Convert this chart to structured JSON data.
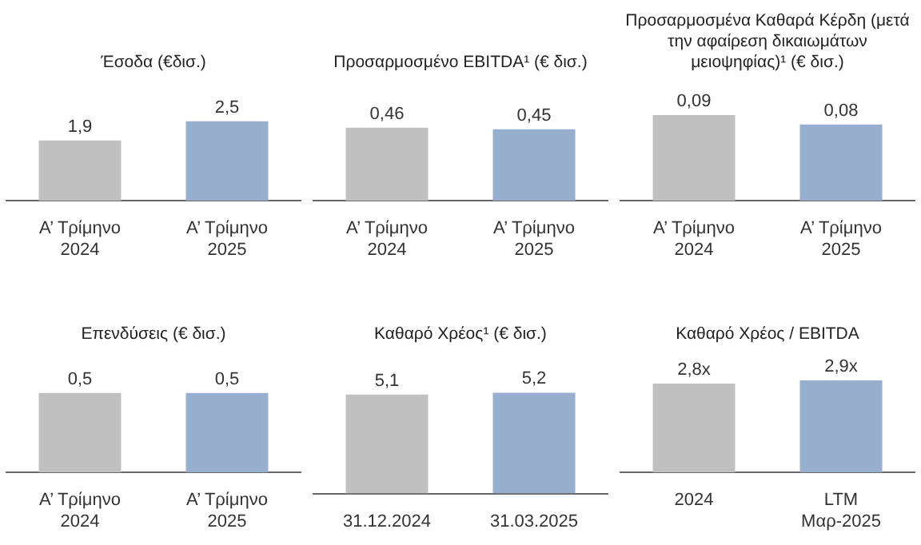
{
  "chart_data": [
    {
      "type": "bar",
      "title": "Έσοδα (€δισ.)",
      "categories": [
        "Α’ Τρίμηνο 2024",
        "Α’ Τρίμηνο 2025"
      ],
      "values": [
        1.9,
        2.5
      ],
      "colors": [
        "#c0c0c0",
        "#97aece"
      ],
      "value_labels": [
        "1,9",
        "2,5"
      ]
    },
    {
      "type": "bar",
      "title": "Προσαρμοσμένο EBITDA¹ (€ δισ.)",
      "categories": [
        "Α’ Τρίμηνο 2024",
        "Α’ Τρίμηνο 2025"
      ],
      "values": [
        0.46,
        0.45
      ],
      "colors": [
        "#c0c0c0",
        "#97aece"
      ],
      "value_labels": [
        "0,46",
        "0,45"
      ]
    },
    {
      "type": "bar",
      "title": "Προσαρμοσμένα Καθαρά Κέρδη (μετά την αφαίρεση δικαιωμάτων μειοψηφίας)¹ (€ δισ.)",
      "categories": [
        "Α’ Τρίμηνο 2024",
        "Α’ Τρίμηνο 2025"
      ],
      "values": [
        0.09,
        0.08
      ],
      "colors": [
        "#c0c0c0",
        "#97aece"
      ],
      "value_labels": [
        "0,09",
        "0,08"
      ]
    },
    {
      "type": "bar",
      "title": "Επενδύσεις (€ δισ.)",
      "categories": [
        "Α’ Τρίμηνο 2024",
        "Α’ Τρίμηνο 2025"
      ],
      "values": [
        0.5,
        0.5
      ],
      "colors": [
        "#c0c0c0",
        "#97aece"
      ],
      "value_labels": [
        "0,5",
        "0,5"
      ]
    },
    {
      "type": "bar",
      "title": "Καθαρό Χρέος¹ (€ δισ.)",
      "categories": [
        "31.12.2024",
        "31.03.2025"
      ],
      "values": [
        5.1,
        5.2
      ],
      "colors": [
        "#c0c0c0",
        "#97aece"
      ],
      "value_labels": [
        "5,1",
        "5,2"
      ]
    },
    {
      "type": "bar",
      "title": "Καθαρό Χρέος / EBITDA",
      "categories": [
        "2024",
        "LTM Μαρ-2025"
      ],
      "values": [
        2.8,
        2.9
      ],
      "colors": [
        "#c0c0c0",
        "#97aece"
      ],
      "value_labels": [
        "2,8x",
        "2,9x"
      ]
    }
  ]
}
